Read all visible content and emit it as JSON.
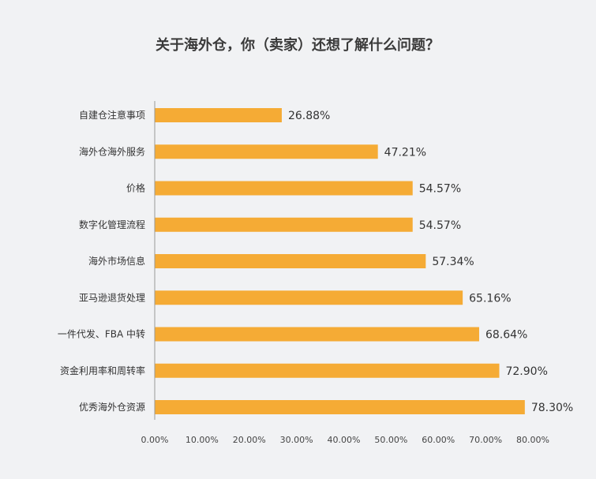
{
  "chart_data": {
    "type": "bar",
    "orientation": "horizontal",
    "title": "关于海外仓，你（卖家）还想了解什么问题？",
    "categories": [
      "自建仓注意事项",
      "海外仓海外服务",
      "价格",
      "数字化管理流程",
      "海外市场信息",
      "亚马逊退货处理",
      "一件代发、FBA 中转",
      "资金利用率和周转率",
      "优秀海外仓资源"
    ],
    "values": [
      26.88,
      47.21,
      54.57,
      54.57,
      57.34,
      65.16,
      68.64,
      72.9,
      78.3
    ],
    "value_labels": [
      "26.88%",
      "47.21%",
      "54.57%",
      "54.57%",
      "57.34%",
      "65.16%",
      "68.64%",
      "72.90%",
      "78.30%"
    ],
    "x_ticks": [
      0,
      10,
      20,
      30,
      40,
      50,
      60,
      70,
      80
    ],
    "x_tick_labels": [
      "0.00%",
      "10.00%",
      "20.00%",
      "30.00%",
      "40.00%",
      "50.00%",
      "60.00%",
      "70.00%",
      "80.00%"
    ],
    "xlim": [
      0,
      80
    ],
    "grid": false,
    "xlabel": "",
    "ylabel": "",
    "colors": {
      "bar": "#f5ab35",
      "background": "#f1f2f4",
      "axis": "#999999"
    }
  }
}
